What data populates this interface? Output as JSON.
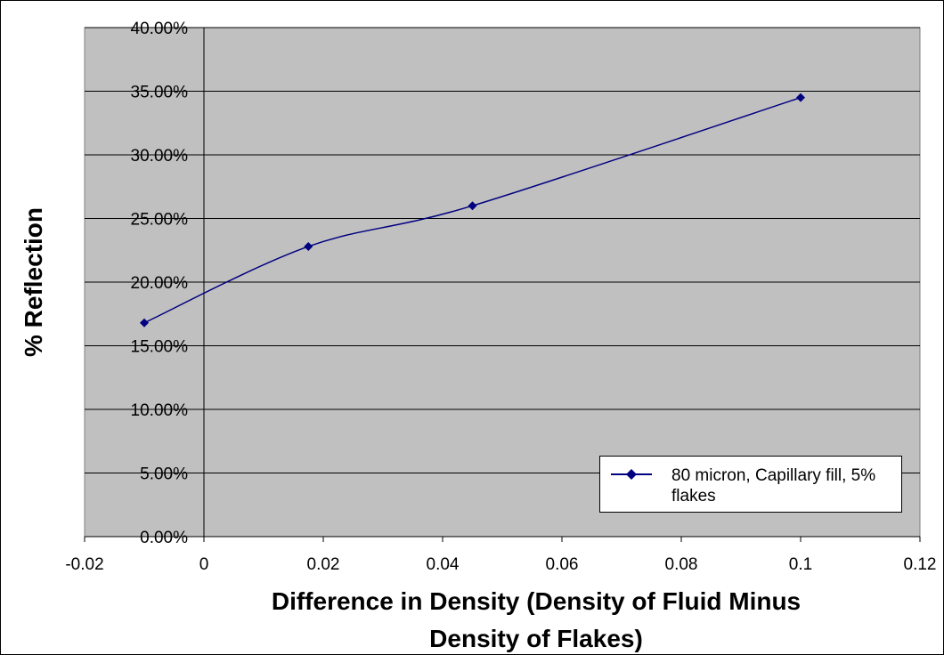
{
  "chart_data": {
    "type": "line",
    "xlabel": "Difference in Density (Density of Fluid Minus Density of Flakes)",
    "xlabel_lines": [
      "Difference in Density (Density of Fluid Minus",
      "Density of Flakes)"
    ],
    "ylabel": "% Reflection",
    "xlim": [
      -0.02,
      0.12
    ],
    "ylim": [
      0,
      0.4
    ],
    "xticks": [
      -0.02,
      0,
      0.02,
      0.04,
      0.06,
      0.08,
      0.1,
      0.12
    ],
    "xtick_labels": [
      "-0.02",
      "0",
      "0.02",
      "0.04",
      "0.06",
      "0.08",
      "0.1",
      "0.12"
    ],
    "yticks": [
      0,
      0.05,
      0.1,
      0.15,
      0.2,
      0.25,
      0.3,
      0.35,
      0.4
    ],
    "ytick_labels": [
      "0.00%",
      "5.00%",
      "10.00%",
      "15.00%",
      "20.00%",
      "25.00%",
      "30.00%",
      "35.00%",
      "40.00%"
    ],
    "grid": "horizontal",
    "legend_position": "bottom-right",
    "series": [
      {
        "name": "80 micron, Capillary fill, 5% flakes",
        "x": [
          -0.01,
          0.0175,
          0.045,
          0.1
        ],
        "y": [
          0.168,
          0.228,
          0.26,
          0.345
        ],
        "color": "#000080",
        "marker": "diamond",
        "smooth": true
      }
    ]
  },
  "colors": {
    "plot_background": "#c0c0c0",
    "grid": "#000000",
    "series": "#000080"
  }
}
